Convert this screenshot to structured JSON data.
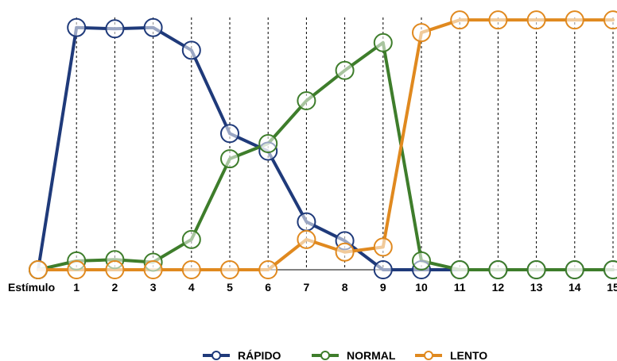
{
  "chart_data": {
    "type": "line",
    "xlabel": "Estímulo",
    "categories": [
      "0",
      "1",
      "2",
      "3",
      "4",
      "5",
      "6",
      "7",
      "8",
      "9",
      "10",
      "11",
      "12",
      "13",
      "14",
      "15"
    ],
    "tick_labels": [
      "",
      "1",
      "2",
      "3",
      "4",
      "5",
      "6",
      "7",
      "8",
      "9",
      "10",
      "11",
      "12",
      "13",
      "14",
      "15"
    ],
    "ylim": [
      0,
      1
    ],
    "grid": "vertical dashed lines at each stimulus",
    "legend_position": "bottom-center",
    "series": [
      {
        "name": "RÁPIDO",
        "color": "#1f3a7a",
        "values": [
          0.0,
          0.96,
          0.955,
          0.96,
          0.87,
          0.54,
          0.47,
          0.19,
          0.115,
          0.0,
          0.0,
          0.0,
          0.0,
          0.0,
          0.0,
          0.0
        ]
      },
      {
        "name": "NORMAL",
        "color": "#3e7d2b",
        "values": [
          0.0,
          0.035,
          0.04,
          0.03,
          0.12,
          0.44,
          0.5,
          0.67,
          0.79,
          0.9,
          0.035,
          0.0,
          0.0,
          0.0,
          0.0,
          0.0
        ]
      },
      {
        "name": "LENTO",
        "color": "#e0891f",
        "values": [
          0.0,
          0.0,
          0.0,
          0.0,
          0.0,
          0.0,
          0.0,
          0.12,
          0.07,
          0.09,
          0.94,
          0.99,
          0.99,
          0.99,
          0.99,
          0.99
        ]
      }
    ]
  }
}
